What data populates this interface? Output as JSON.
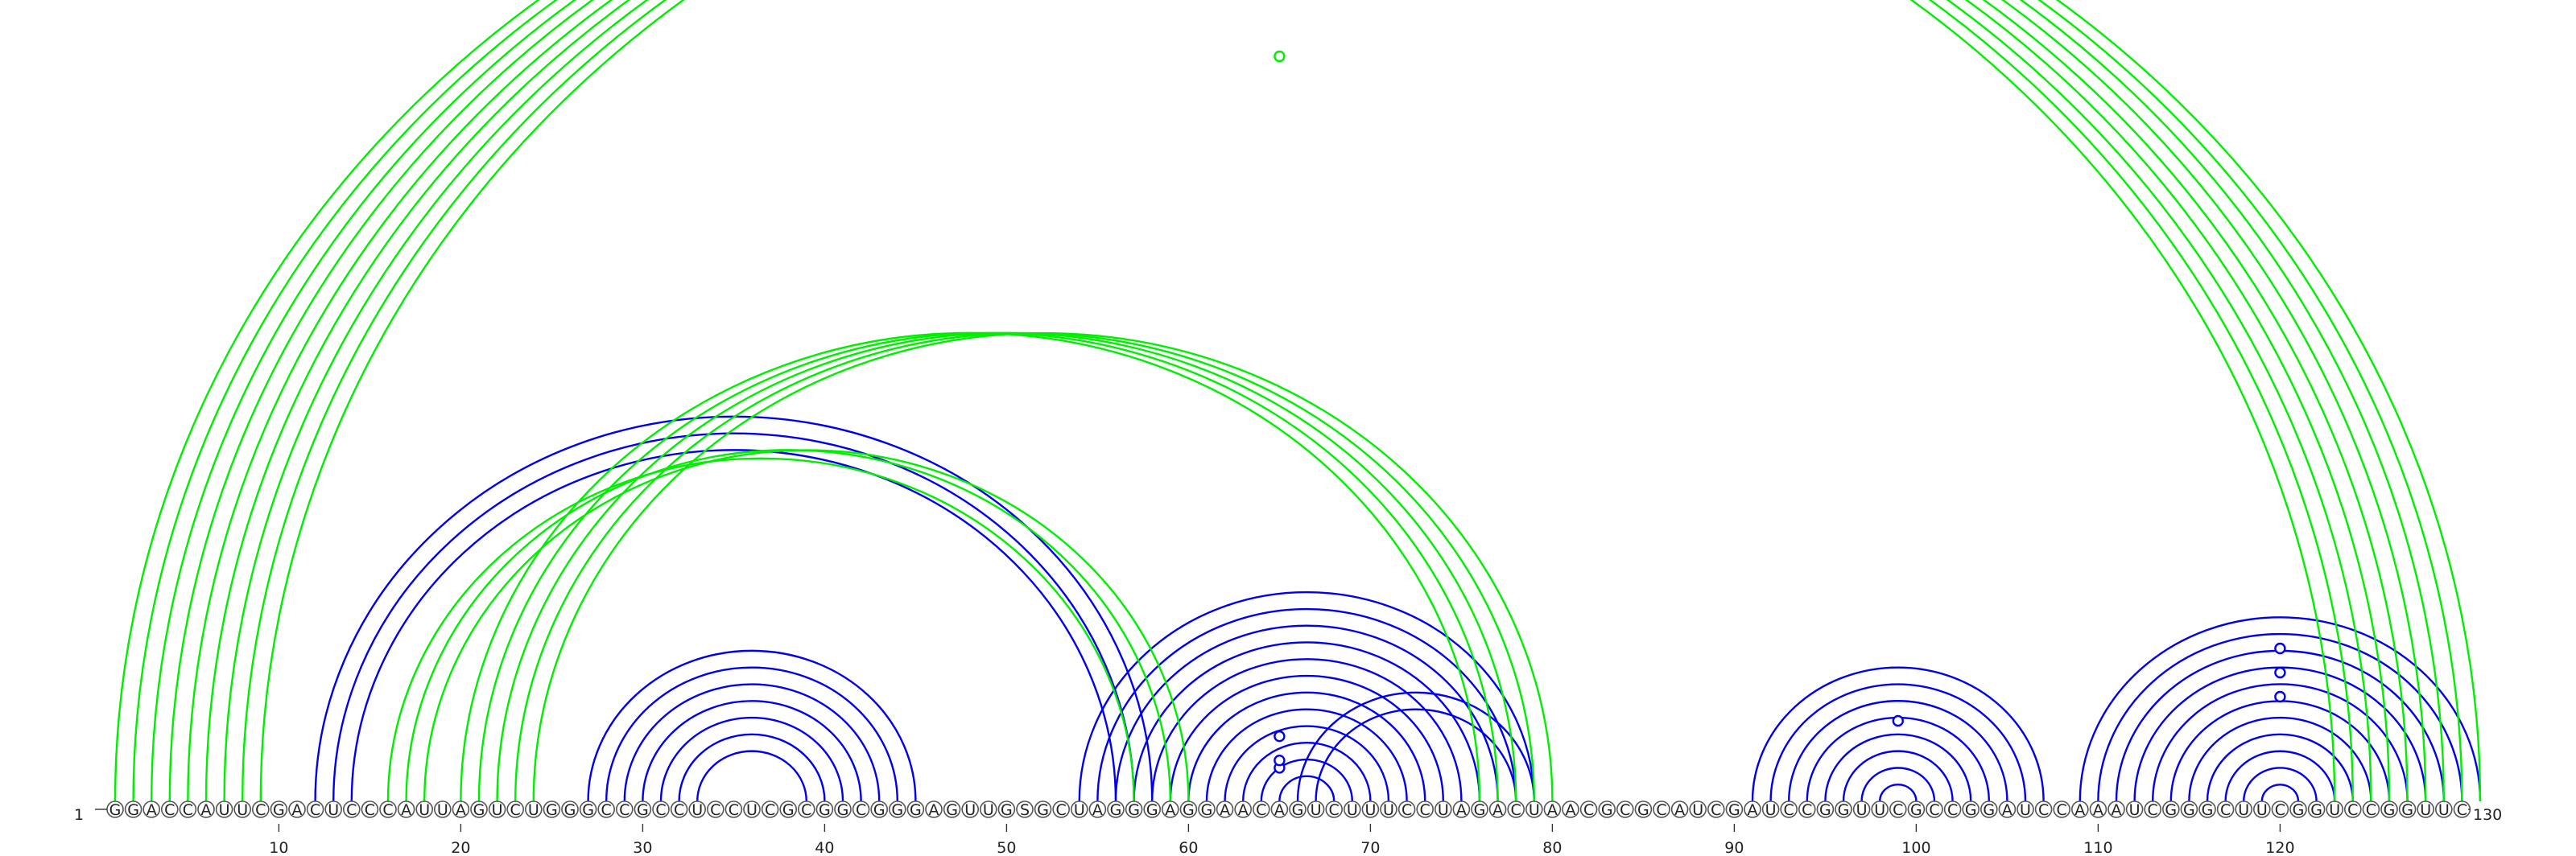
{
  "sequence": "GGACCAUUCGACUCCCAUUAGUCUGGGCCGCCUCCUCGCGGCGGGAGUUGSGCUAGGGAGGAACAGUCUUUCCUAGACUAACGCGCAUCGAUCCGGUUCGCCGGAUCCAAAUCGGGCUUCGGUCCGGUUC",
  "start_label": "1",
  "end_label": "130",
  "ticks": [
    10,
    20,
    30,
    40,
    50,
    60,
    70,
    80,
    90,
    100,
    110,
    120
  ],
  "colors": {
    "structure_a": "#0000ee",
    "structure_b": "#00ee00",
    "nucleotide_stroke": "#555555",
    "text": "#222222"
  },
  "chart_data": {
    "type": "arc-diagram",
    "length": 130,
    "series": [
      {
        "color": "#0000ee",
        "pairs": [
          [
            12,
            58
          ],
          [
            13,
            57
          ],
          [
            14,
            56
          ],
          [
            27,
            45
          ],
          [
            28,
            44
          ],
          [
            29,
            43
          ],
          [
            30,
            42
          ],
          [
            31,
            41
          ],
          [
            32,
            40
          ],
          [
            33,
            39
          ],
          [
            54,
            79
          ],
          [
            55,
            78
          ],
          [
            56,
            77
          ],
          [
            57,
            76
          ],
          [
            58,
            75
          ],
          [
            59,
            74
          ],
          [
            60,
            73
          ],
          [
            61,
            72
          ],
          [
            62,
            71
          ],
          [
            63,
            70
          ],
          [
            64,
            69
          ],
          [
            65,
            68
          ],
          [
            66,
            79
          ],
          [
            67,
            78
          ],
          [
            91,
            107
          ],
          [
            92,
            106
          ],
          [
            93,
            105
          ],
          [
            94,
            104
          ],
          [
            95,
            103
          ],
          [
            96,
            102
          ],
          [
            97,
            101
          ],
          [
            98,
            100
          ],
          [
            109,
            131
          ],
          [
            110,
            130
          ],
          [
            111,
            129
          ],
          [
            112,
            128
          ],
          [
            113,
            127
          ],
          [
            114,
            126
          ],
          [
            115,
            125
          ],
          [
            116,
            124
          ],
          [
            117,
            123
          ],
          [
            118,
            122
          ],
          [
            119,
            121
          ]
        ],
        "markers": [
          [
            63,
            67
          ],
          [
            64,
            66
          ],
          [
            64,
            66
          ],
          [
            99,
            99
          ],
          [
            120,
            120
          ],
          [
            120,
            120
          ],
          [
            120,
            120
          ]
        ]
      },
      {
        "color": "#00ee00",
        "pairs": [
          [
            1,
            123
          ],
          [
            2,
            124
          ],
          [
            3,
            125
          ],
          [
            4,
            126
          ],
          [
            5,
            127
          ],
          [
            6,
            128
          ],
          [
            7,
            129
          ],
          [
            8,
            130
          ],
          [
            9,
            131
          ],
          [
            16,
            57
          ],
          [
            17,
            59
          ],
          [
            18,
            60
          ],
          [
            20,
            76
          ],
          [
            21,
            77
          ],
          [
            22,
            78
          ],
          [
            23,
            79
          ],
          [
            24,
            80
          ]
        ],
        "markers": [
          [
            65,
            65
          ]
        ]
      }
    ]
  }
}
